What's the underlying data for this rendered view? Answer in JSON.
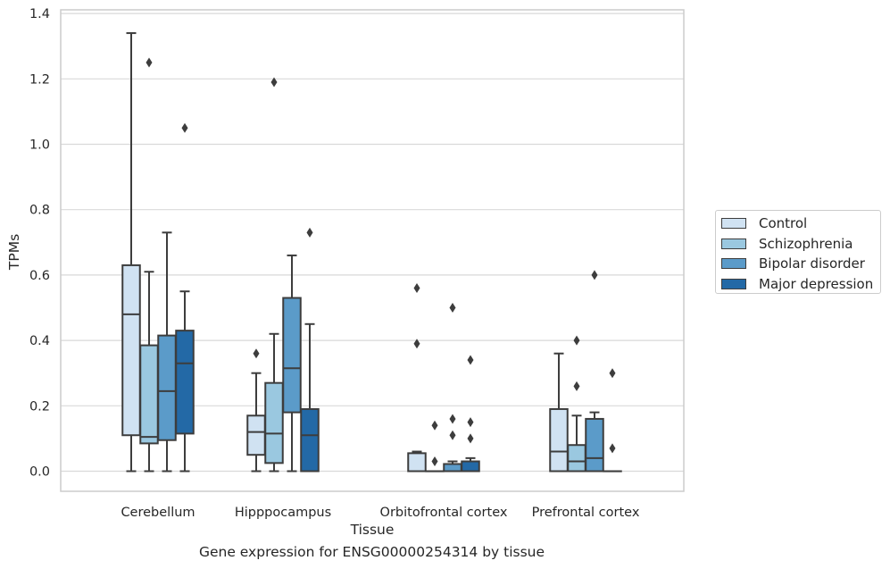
{
  "chart_data": {
    "type": "box",
    "xlabel": "Tissue",
    "ylabel": "TPMs",
    "ylim": [
      -0.065,
      1.41
    ],
    "yticks": [
      "0.0",
      "0.2",
      "0.4",
      "0.6",
      "0.8",
      "1.0",
      "1.2",
      "1.4"
    ],
    "ytick_values": [
      0.0,
      0.2,
      0.4,
      0.6,
      0.8,
      1.0,
      1.2,
      1.4
    ],
    "categories": [
      "Cerebellum",
      "Hipppocampus",
      "Orbitofrontal cortex",
      "Prefrontal cortex"
    ],
    "series": [
      {
        "name": "Control",
        "color": "#d0e2f2",
        "boxes": [
          {
            "whislo": 0.0,
            "q1": 0.11,
            "med": 0.48,
            "q3": 0.63,
            "whishi": 1.34,
            "fliers": []
          },
          {
            "whislo": 0.0,
            "q1": 0.05,
            "med": 0.12,
            "q3": 0.17,
            "whishi": 0.3,
            "fliers": [
              0.36
            ]
          },
          {
            "whislo": 0.0,
            "q1": 0.0,
            "med": 0.0,
            "q3": 0.055,
            "whishi": 0.06,
            "fliers": [
              0.39,
              0.56
            ]
          },
          {
            "whislo": 0.0,
            "q1": 0.0,
            "med": 0.06,
            "q3": 0.19,
            "whishi": 0.36,
            "fliers": []
          }
        ]
      },
      {
        "name": "Schizophrenia",
        "color": "#9ac8e0",
        "boxes": [
          {
            "whislo": 0.0,
            "q1": 0.085,
            "med": 0.105,
            "q3": 0.385,
            "whishi": 0.61,
            "fliers": [
              1.25
            ]
          },
          {
            "whislo": 0.0,
            "q1": 0.025,
            "med": 0.115,
            "q3": 0.27,
            "whishi": 0.42,
            "fliers": [
              1.19
            ]
          },
          {
            "whislo": 0.0,
            "q1": 0.0,
            "med": 0.0,
            "q3": 0.0,
            "whishi": 0.0,
            "fliers": [
              0.03,
              0.14
            ]
          },
          {
            "whislo": 0.0,
            "q1": 0.0,
            "med": 0.03,
            "q3": 0.08,
            "whishi": 0.17,
            "fliers": [
              0.26,
              0.4
            ]
          }
        ]
      },
      {
        "name": "Bipolar disorder",
        "color": "#5b9bc9",
        "boxes": [
          {
            "whislo": 0.0,
            "q1": 0.095,
            "med": 0.245,
            "q3": 0.415,
            "whishi": 0.73,
            "fliers": []
          },
          {
            "whislo": 0.0,
            "q1": 0.18,
            "med": 0.315,
            "q3": 0.53,
            "whishi": 0.66,
            "fliers": []
          },
          {
            "whislo": 0.0,
            "q1": 0.0,
            "med": 0.0,
            "q3": 0.022,
            "whishi": 0.03,
            "fliers": [
              0.11,
              0.16,
              0.5
            ]
          },
          {
            "whislo": 0.0,
            "q1": 0.0,
            "med": 0.04,
            "q3": 0.16,
            "whishi": 0.18,
            "fliers": [
              0.6
            ]
          }
        ]
      },
      {
        "name": "Major depression",
        "color": "#2369a6",
        "boxes": [
          {
            "whislo": 0.0,
            "q1": 0.115,
            "med": 0.33,
            "q3": 0.43,
            "whishi": 0.55,
            "fliers": [
              1.05
            ]
          },
          {
            "whislo": 0.0,
            "q1": 0.0,
            "med": 0.11,
            "q3": 0.19,
            "whishi": 0.45,
            "fliers": [
              0.73
            ]
          },
          {
            "whislo": 0.0,
            "q1": 0.0,
            "med": 0.0,
            "q3": 0.03,
            "whishi": 0.04,
            "fliers": [
              0.1,
              0.15,
              0.34
            ]
          },
          {
            "whislo": 0.0,
            "q1": 0.0,
            "med": 0.0,
            "q3": 0.0,
            "whishi": 0.0,
            "fliers": [
              0.07,
              0.3
            ]
          }
        ]
      }
    ],
    "grid": "horizontal",
    "legend_position": "right"
  },
  "caption": "Gene expression for ENSG00000254314 by tissue"
}
